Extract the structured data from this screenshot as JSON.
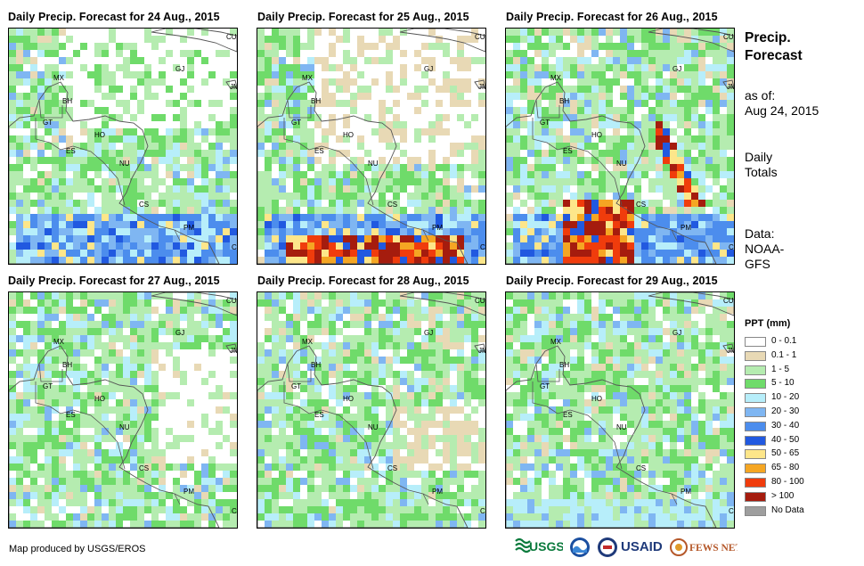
{
  "panels": [
    {
      "title": "Daily Precip. Forecast for 24 Aug., 2015",
      "intensity": 1
    },
    {
      "title": "Daily Precip. Forecast for 25 Aug., 2015",
      "intensity": 2
    },
    {
      "title": "Daily Precip. Forecast for 26 Aug., 2015",
      "intensity": 3
    },
    {
      "title": "Daily Precip. Forecast for 27 Aug., 2015",
      "intensity": 4
    },
    {
      "title": "Daily Precip. Forecast for 28 Aug., 2015",
      "intensity": 5
    },
    {
      "title": "Daily Precip. Forecast for 29 Aug., 2015",
      "intensity": 6
    }
  ],
  "map_labels": [
    "CU",
    "GJ",
    "JM",
    "MX",
    "BH",
    "GT",
    "HO",
    "ES",
    "NU",
    "CS",
    "PM",
    "CO"
  ],
  "sidebar": {
    "title_line1": "Precip.",
    "title_line2": "Forecast",
    "asof_line1": "as of:",
    "asof_line2": "Aug 24, 2015",
    "daily_line1": "Daily",
    "daily_line2": "Totals",
    "data_line1": "Data:",
    "data_line2": "NOAA-",
    "data_line3": "GFS"
  },
  "legend": {
    "title": "PPT (mm)",
    "items": [
      {
        "label": "0 - 0.1",
        "color": "#ffffff"
      },
      {
        "label": "0.1 - 1",
        "color": "#e8d9b5"
      },
      {
        "label": "1 - 5",
        "color": "#b5ecb0"
      },
      {
        "label": "5 - 10",
        "color": "#6fdb6a"
      },
      {
        "label": "10 - 20",
        "color": "#b7eefa"
      },
      {
        "label": "20 - 30",
        "color": "#7fb6f2"
      },
      {
        "label": "30 - 40",
        "color": "#4c8ded"
      },
      {
        "label": "40 - 50",
        "color": "#2159e0"
      },
      {
        "label": "50 - 65",
        "color": "#fde68a"
      },
      {
        "label": "65 - 80",
        "color": "#f5a623"
      },
      {
        "label": "80 - 100",
        "color": "#f03c0c"
      },
      {
        "label": "> 100",
        "color": "#a51c0e"
      },
      {
        "label": "No Data",
        "color": "#9e9e9e"
      }
    ]
  },
  "credit": "Map produced by USGS/EROS",
  "logos": [
    "USGS",
    "NOAA",
    "USAID",
    "FEWS NET"
  ]
}
